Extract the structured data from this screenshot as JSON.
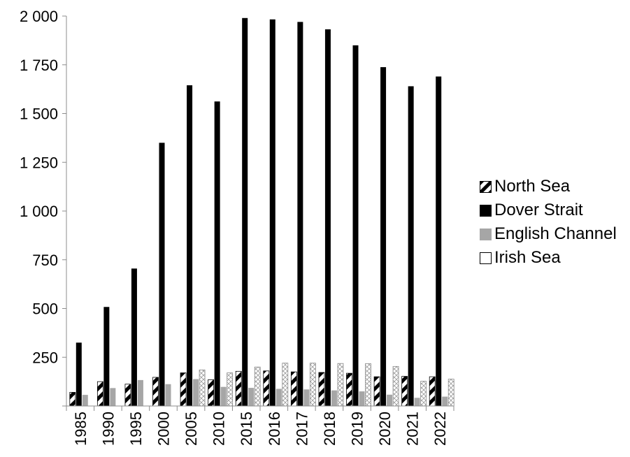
{
  "chart_data": {
    "type": "bar",
    "categories": [
      "1985",
      "1990",
      "1995",
      "2000",
      "2005",
      "2010",
      "2015",
      "2016",
      "2017",
      "2018",
      "2019",
      "2020",
      "2021",
      "2022"
    ],
    "series": [
      {
        "name": "North Sea",
        "pattern": "diagonal-stripes",
        "color": "#000000",
        "values": [
          70,
          125,
          112,
          147,
          170,
          135,
          178,
          180,
          175,
          172,
          168,
          150,
          152,
          150
        ]
      },
      {
        "name": "Dover Strait",
        "pattern": "solid",
        "color": "#000000",
        "values": [
          325,
          508,
          705,
          1350,
          1645,
          1562,
          1990,
          1983,
          1970,
          1932,
          1850,
          1738,
          1640,
          1690
        ]
      },
      {
        "name": "English Channel",
        "pattern": "solid",
        "color": "#a6a6a6",
        "values": [
          57,
          92,
          133,
          112,
          138,
          98,
          93,
          88,
          85,
          80,
          75,
          58,
          42,
          48
        ]
      },
      {
        "name": "Irish Sea",
        "pattern": "crosshatch",
        "color": "#ffffff",
        "values": [
          null,
          null,
          null,
          null,
          185,
          170,
          200,
          220,
          220,
          218,
          217,
          203,
          127,
          138
        ]
      }
    ],
    "yticks": [
      "2 000",
      "1 750",
      "1 500",
      "1 250",
      "1 000",
      "750",
      "500",
      "250"
    ],
    "ylim": [
      0,
      2000
    ],
    "grid": false,
    "legend_position": "right",
    "title": "",
    "xlabel": "",
    "ylabel": ""
  }
}
